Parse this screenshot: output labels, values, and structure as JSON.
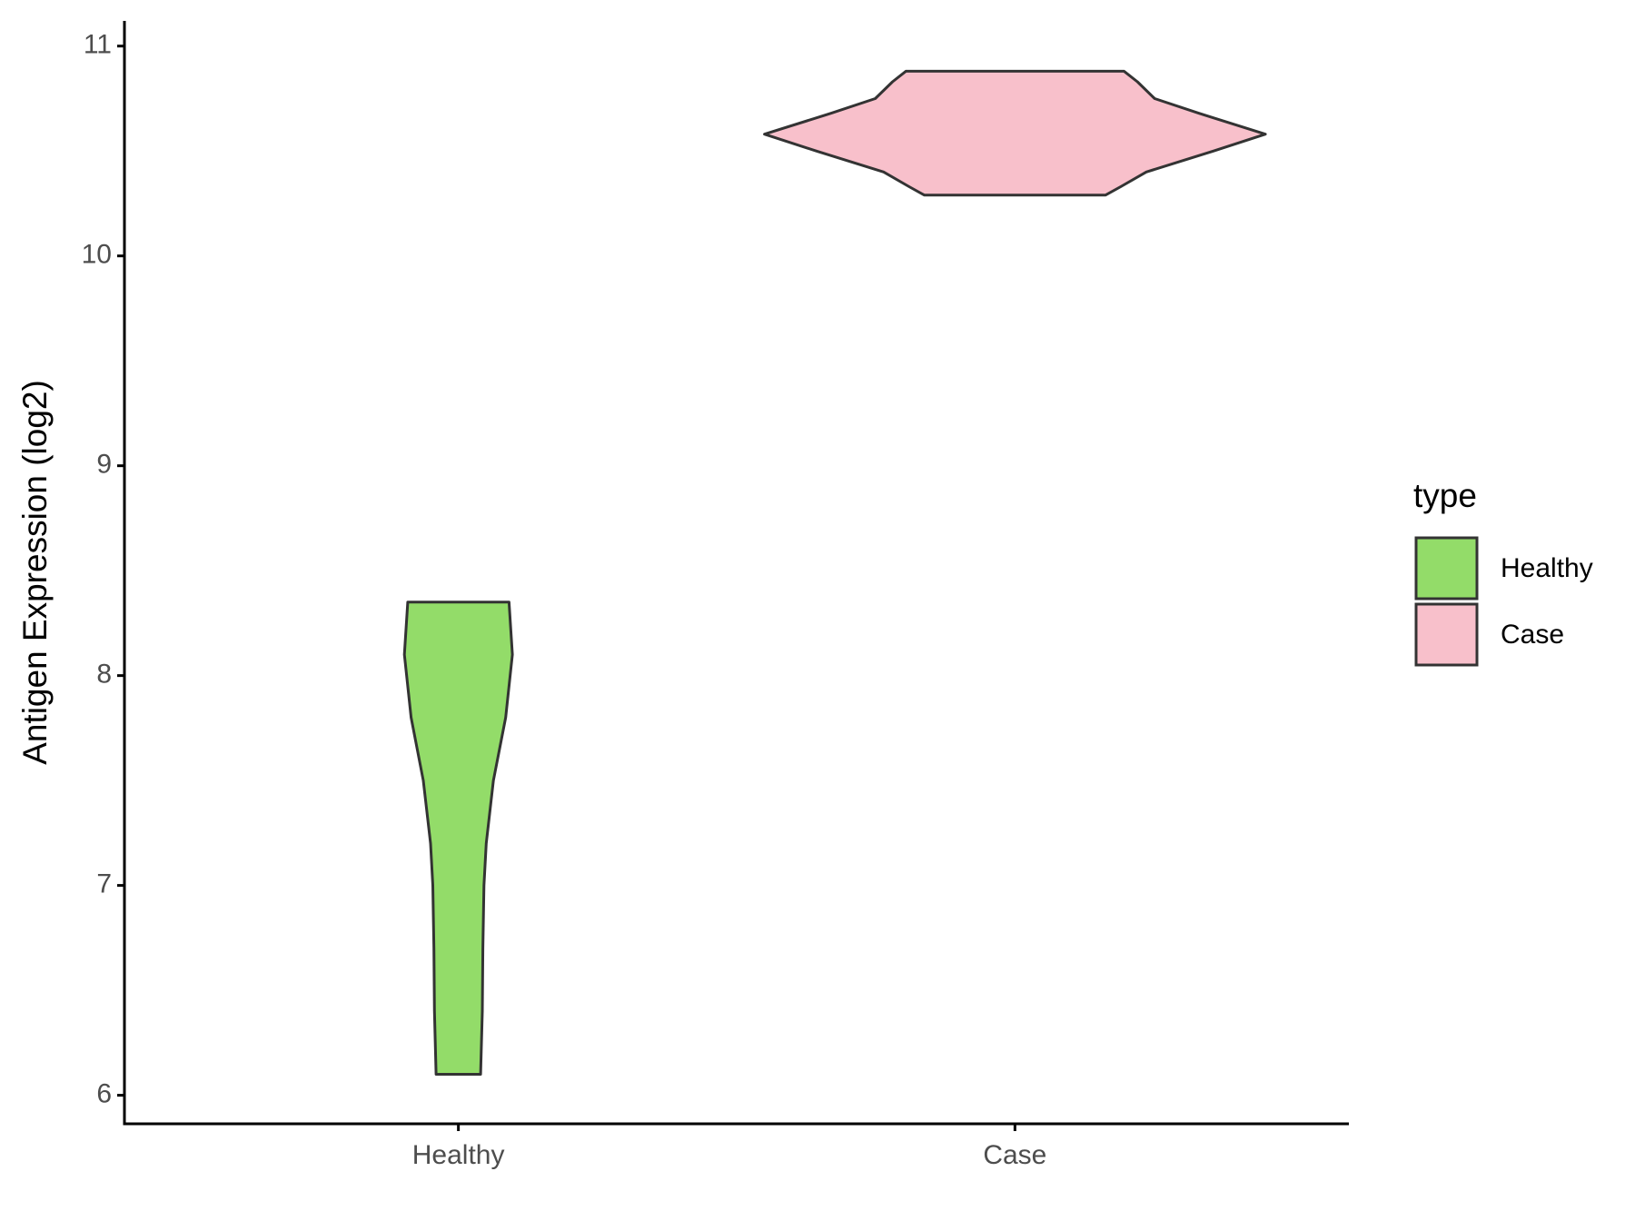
{
  "chart_data": {
    "type": "violin",
    "y_label": "Antigen Expression (log2)",
    "categories": [
      "Healthy",
      "Case"
    ],
    "series": [
      {
        "name": "Healthy",
        "color": "#93dc69",
        "y": [
          8.35,
          8.1,
          7.8,
          7.5,
          7.2,
          7.0,
          6.7,
          6.4,
          6.1
        ],
        "half_width": [
          0.091,
          0.097,
          0.085,
          0.063,
          0.05,
          0.046,
          0.044,
          0.043,
          0.04
        ]
      },
      {
        "name": "Case",
        "color": "#f8c0cb",
        "y": [
          10.88,
          10.83,
          10.75,
          10.68,
          10.58,
          10.5,
          10.4,
          10.33,
          10.29
        ],
        "half_width": [
          0.196,
          0.22,
          0.251,
          0.33,
          0.45,
          0.357,
          0.236,
          0.19,
          0.163
        ]
      }
    ],
    "ylim": [
      5.864,
      11.12
    ],
    "yticks": [
      6,
      7,
      8,
      9,
      10,
      11
    ],
    "legend_title": "type",
    "legend_position": "right"
  }
}
